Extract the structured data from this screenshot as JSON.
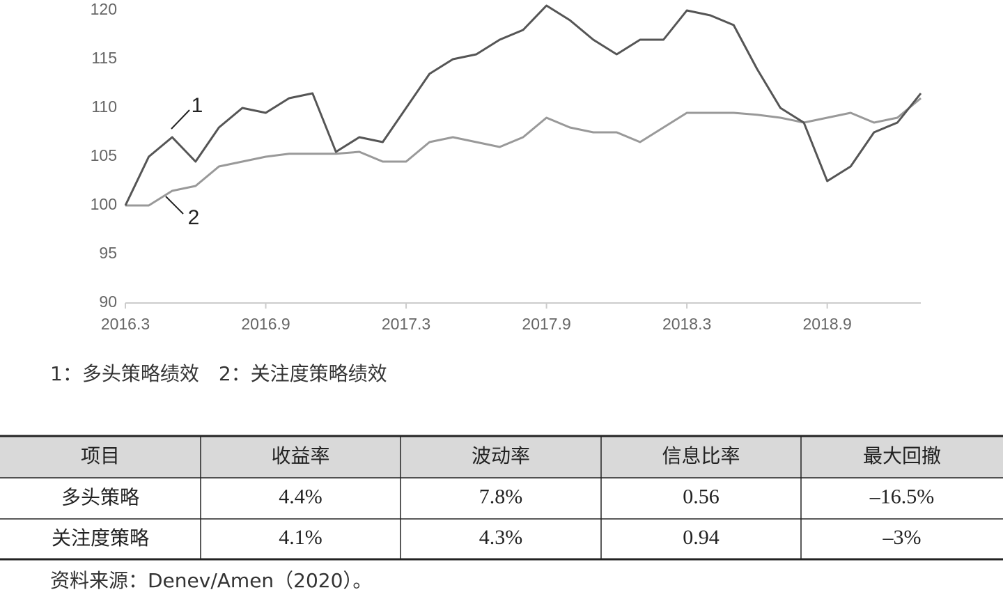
{
  "chart_data": {
    "type": "line",
    "x": [
      "2016.3",
      null,
      null,
      null,
      null,
      null,
      "2016.9",
      null,
      null,
      null,
      null,
      null,
      "2017.3",
      null,
      null,
      null,
      null,
      null,
      "2017.9",
      null,
      null,
      null,
      null,
      null,
      "2018.3",
      null,
      null,
      null,
      null,
      null,
      "2018.9",
      null,
      null,
      null,
      null
    ],
    "series": [
      {
        "name": "1",
        "color": "#555555",
        "values": [
          100,
          105,
          107,
          104.5,
          108,
          110,
          109.5,
          111,
          111.5,
          105.5,
          107,
          106.5,
          110,
          113.5,
          115,
          115.5,
          117,
          118,
          120.5,
          119,
          117,
          115.5,
          117,
          117,
          120,
          119.5,
          118.5,
          114,
          110,
          108.5,
          102.5,
          104,
          107.5,
          108.5,
          111.5
        ]
      },
      {
        "name": "2",
        "color": "#999999",
        "values": [
          100,
          100,
          101.5,
          102,
          104,
          104.5,
          105,
          105.3,
          105.3,
          105.3,
          105.5,
          104.5,
          104.5,
          106.5,
          107,
          106.5,
          106,
          107,
          109,
          108,
          107.5,
          107.5,
          106.5,
          108,
          109.5,
          109.5,
          109.5,
          109.3,
          109,
          108.5,
          109,
          109.5,
          108.5,
          109,
          111
        ]
      }
    ],
    "ylim": [
      90,
      120
    ],
    "yticks": [
      90,
      95,
      100,
      105,
      110,
      115,
      120
    ],
    "grid": false,
    "caption": "1：多头策略绩效　2：关注度策略绩效"
  },
  "table": {
    "header": [
      "项目",
      "收益率",
      "波动率",
      "信息比率",
      "最大回撤"
    ],
    "rows": [
      [
        "多头策略",
        "4.4%",
        "7.8%",
        "0.56",
        "–16.5%"
      ],
      [
        "关注度策略",
        "4.1%",
        "4.3%",
        "0.94",
        "–3%"
      ]
    ]
  },
  "source": "资料来源：Denev/Amen（2020）。"
}
